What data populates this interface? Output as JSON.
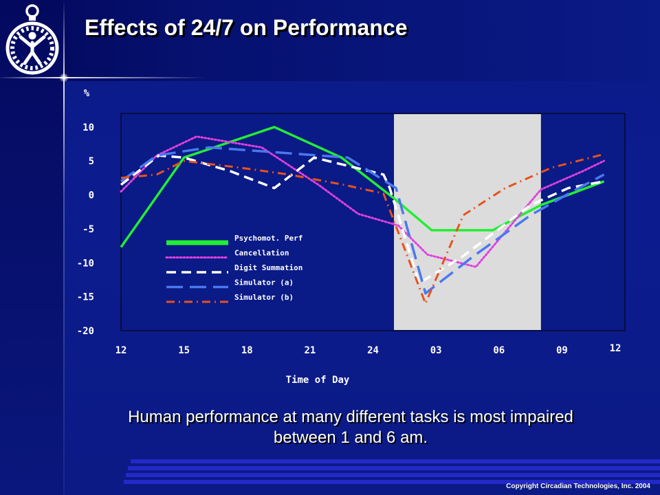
{
  "slide": {
    "title": "Effects of 24/7 on Performance",
    "caption": "Human performance at many different tasks is most impaired between 1 and 6 am.",
    "copyright": "Copyright Circadian Technologies, Inc. 2004"
  },
  "chart_data": {
    "type": "line",
    "ylabel": "%",
    "xlabel": "Time of Day",
    "ylim": [
      -20,
      12
    ],
    "x": [
      12,
      15,
      18,
      21,
      24,
      27,
      30,
      33,
      36
    ],
    "yticks": [
      10,
      5,
      0,
      -5,
      -10,
      -15,
      -20
    ],
    "xtick_labels": [
      "12",
      "15",
      "18",
      "21",
      "24",
      "03",
      "06",
      "09",
      "12"
    ],
    "shaded_region": [
      25,
      32
    ],
    "grid": false,
    "legend_position": "center-left",
    "series": [
      {
        "name": "Psychomot. Perf",
        "color": "#22ee33",
        "style": "solid",
        "points": [
          [
            12,
            -7.7
          ],
          [
            15,
            5.5
          ],
          [
            19.3,
            10
          ],
          [
            22.5,
            5.5
          ],
          [
            25,
            -0.5
          ],
          [
            26.8,
            -5.2
          ],
          [
            29.7,
            -5.2
          ],
          [
            32,
            -1.5
          ],
          [
            35,
            2
          ]
        ]
      },
      {
        "name": "Cancellation",
        "color": "#e040e0",
        "style": "dotted",
        "points": [
          [
            12,
            0.5
          ],
          [
            13.7,
            5.8
          ],
          [
            15.6,
            8.6
          ],
          [
            18.7,
            7.0
          ],
          [
            21.4,
            1.5
          ],
          [
            23.3,
            -2.8
          ],
          [
            25.2,
            -4.5
          ],
          [
            26.6,
            -8.8
          ],
          [
            28.9,
            -10.6
          ],
          [
            32,
            0.8
          ],
          [
            34,
            3.5
          ],
          [
            35,
            5
          ]
        ]
      },
      {
        "name": "Digit Summation",
        "color": "#ffffff",
        "style": "dashed",
        "points": [
          [
            12,
            1.5
          ],
          [
            13.8,
            5.8
          ],
          [
            15,
            5.5
          ],
          [
            17.2,
            3.5
          ],
          [
            19.3,
            1.0
          ],
          [
            21.2,
            5.5
          ],
          [
            24.5,
            3.0
          ],
          [
            24.8,
            1.0
          ],
          [
            26.2,
            -13.0
          ],
          [
            28.3,
            -9.0
          ],
          [
            31.5,
            -1.5
          ],
          [
            33.3,
            1.0
          ],
          [
            35,
            2
          ]
        ]
      },
      {
        "name": "Simulator (a)",
        "color": "#4a78f0",
        "style": "longdash",
        "points": [
          [
            12,
            2.0
          ],
          [
            13.7,
            5.8
          ],
          [
            16.2,
            7.0
          ],
          [
            22.8,
            5.5
          ],
          [
            25.1,
            1.0
          ],
          [
            26.5,
            -14.5
          ],
          [
            28.8,
            -9.0
          ],
          [
            31.5,
            -3.0
          ],
          [
            33.5,
            0.5
          ],
          [
            35,
            3
          ]
        ]
      },
      {
        "name": "Simulator (b)",
        "color": "#e8521c",
        "style": "dashdot",
        "points": [
          [
            12,
            2.5
          ],
          [
            13.7,
            3.0
          ],
          [
            15,
            5.0
          ],
          [
            17.7,
            4.0
          ],
          [
            20,
            3.0
          ],
          [
            22.6,
            1.5
          ],
          [
            24.5,
            0.2
          ],
          [
            26.5,
            -16.0
          ],
          [
            28.3,
            -3.0
          ],
          [
            30.3,
            1.0
          ],
          [
            32.5,
            4.0
          ],
          [
            35,
            6
          ]
        ]
      }
    ]
  }
}
